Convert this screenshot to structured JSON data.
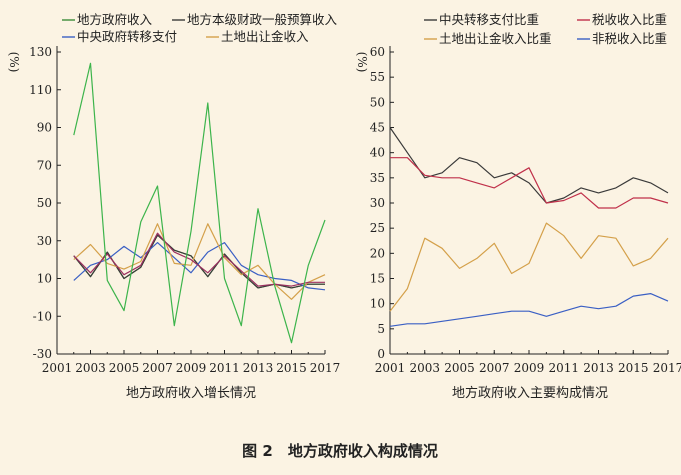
{
  "figure": {
    "title": "图 2　地方政府收入构成情况",
    "background": "#fbf3e3"
  },
  "chart_data": [
    {
      "type": "line",
      "id": "left",
      "xlabel": "地方政府收入增长情况",
      "ylabel": "%",
      "xlim": [
        2001,
        2017
      ],
      "ylim": [
        -30,
        130
      ],
      "xticks": [
        2001,
        2003,
        2005,
        2007,
        2009,
        2011,
        2013,
        2015,
        2017
      ],
      "yticks": [
        -30,
        -10,
        10,
        30,
        50,
        70,
        90,
        110,
        130
      ],
      "legend_position": "top",
      "x": [
        2002,
        2003,
        2004,
        2005,
        2006,
        2007,
        2008,
        2009,
        2010,
        2011,
        2012,
        2013,
        2014,
        2015,
        2016,
        2017
      ],
      "series": [
        {
          "name": "地方政府收入",
          "color": "#3c8c3a",
          "values": [
            22,
            11,
            24,
            10,
            16,
            33,
            25,
            22,
            11,
            23,
            13,
            5,
            7,
            5,
            7,
            7
          ]
        },
        {
          "name": "地方本级财政一般预算收入",
          "color": "#3a3a3a",
          "values": [
            22,
            11,
            24,
            10,
            16,
            33,
            25,
            22,
            11,
            23,
            13,
            5,
            7,
            5,
            7,
            7
          ]
        },
        {
          "name": "中央政府转移支付",
          "color": "#3a5fc4",
          "values": [
            9,
            17,
            20,
            27,
            21,
            29,
            21,
            13,
            24,
            29,
            17,
            12,
            10,
            9,
            5,
            4
          ]
        },
        {
          "name": "土地出让金收入",
          "color": "#d4a04a",
          "values": [
            20,
            28,
            18,
            15,
            19,
            39,
            18,
            17,
            39,
            21,
            12,
            17,
            7,
            -1,
            8,
            12
          ]
        },
        {
          "name": "",
          "color": "#9c3060",
          "values": [
            22,
            13,
            23,
            12,
            17,
            34,
            24,
            20,
            13,
            22,
            14,
            6,
            7,
            6,
            8,
            8
          ]
        },
        {
          "name": "",
          "color": "#3cb44b",
          "values": [
            86,
            124,
            9,
            -7,
            40,
            59,
            -15,
            35,
            103,
            10,
            -15,
            47,
            6,
            -24,
            17,
            41
          ]
        }
      ]
    },
    {
      "type": "line",
      "id": "right",
      "xlabel": "地方政府收入主要构成情况",
      "ylabel": "%",
      "xlim": [
        2001,
        2017
      ],
      "ylim": [
        0,
        60
      ],
      "xticks": [
        2001,
        2003,
        2005,
        2007,
        2009,
        2011,
        2013,
        2015,
        2017
      ],
      "yticks": [
        0,
        5,
        10,
        15,
        20,
        25,
        30,
        35,
        40,
        45,
        50,
        55,
        60
      ],
      "legend_position": "top",
      "x": [
        2001,
        2002,
        2003,
        2004,
        2005,
        2006,
        2007,
        2008,
        2009,
        2010,
        2011,
        2012,
        2013,
        2014,
        2015,
        2016,
        2017
      ],
      "series": [
        {
          "name": "中央转移支付比重",
          "color": "#3a3a3a",
          "values": [
            45,
            40,
            35,
            36,
            39,
            38,
            35,
            36,
            34,
            30,
            31,
            33,
            32,
            33,
            35,
            34,
            32
          ]
        },
        {
          "name": "税收收入比重",
          "color": "#c0304a",
          "values": [
            39,
            39,
            35.5,
            35,
            35,
            34,
            33,
            35,
            37,
            30,
            30.5,
            32,
            29,
            29,
            31,
            31,
            30
          ]
        },
        {
          "name": "土地出让金收入比重",
          "color": "#d4a04a",
          "values": [
            8.5,
            13,
            23,
            21,
            17,
            19,
            22,
            16,
            18,
            26,
            23.5,
            19,
            23.5,
            23,
            17.5,
            19,
            23
          ]
        },
        {
          "name": "非税收入比重",
          "color": "#3a5fc4",
          "values": [
            5.5,
            6,
            6,
            6.5,
            7,
            7.5,
            8,
            8.5,
            8.5,
            7.5,
            8.5,
            9.5,
            9,
            9.5,
            11.5,
            12,
            10.5
          ]
        }
      ]
    }
  ]
}
